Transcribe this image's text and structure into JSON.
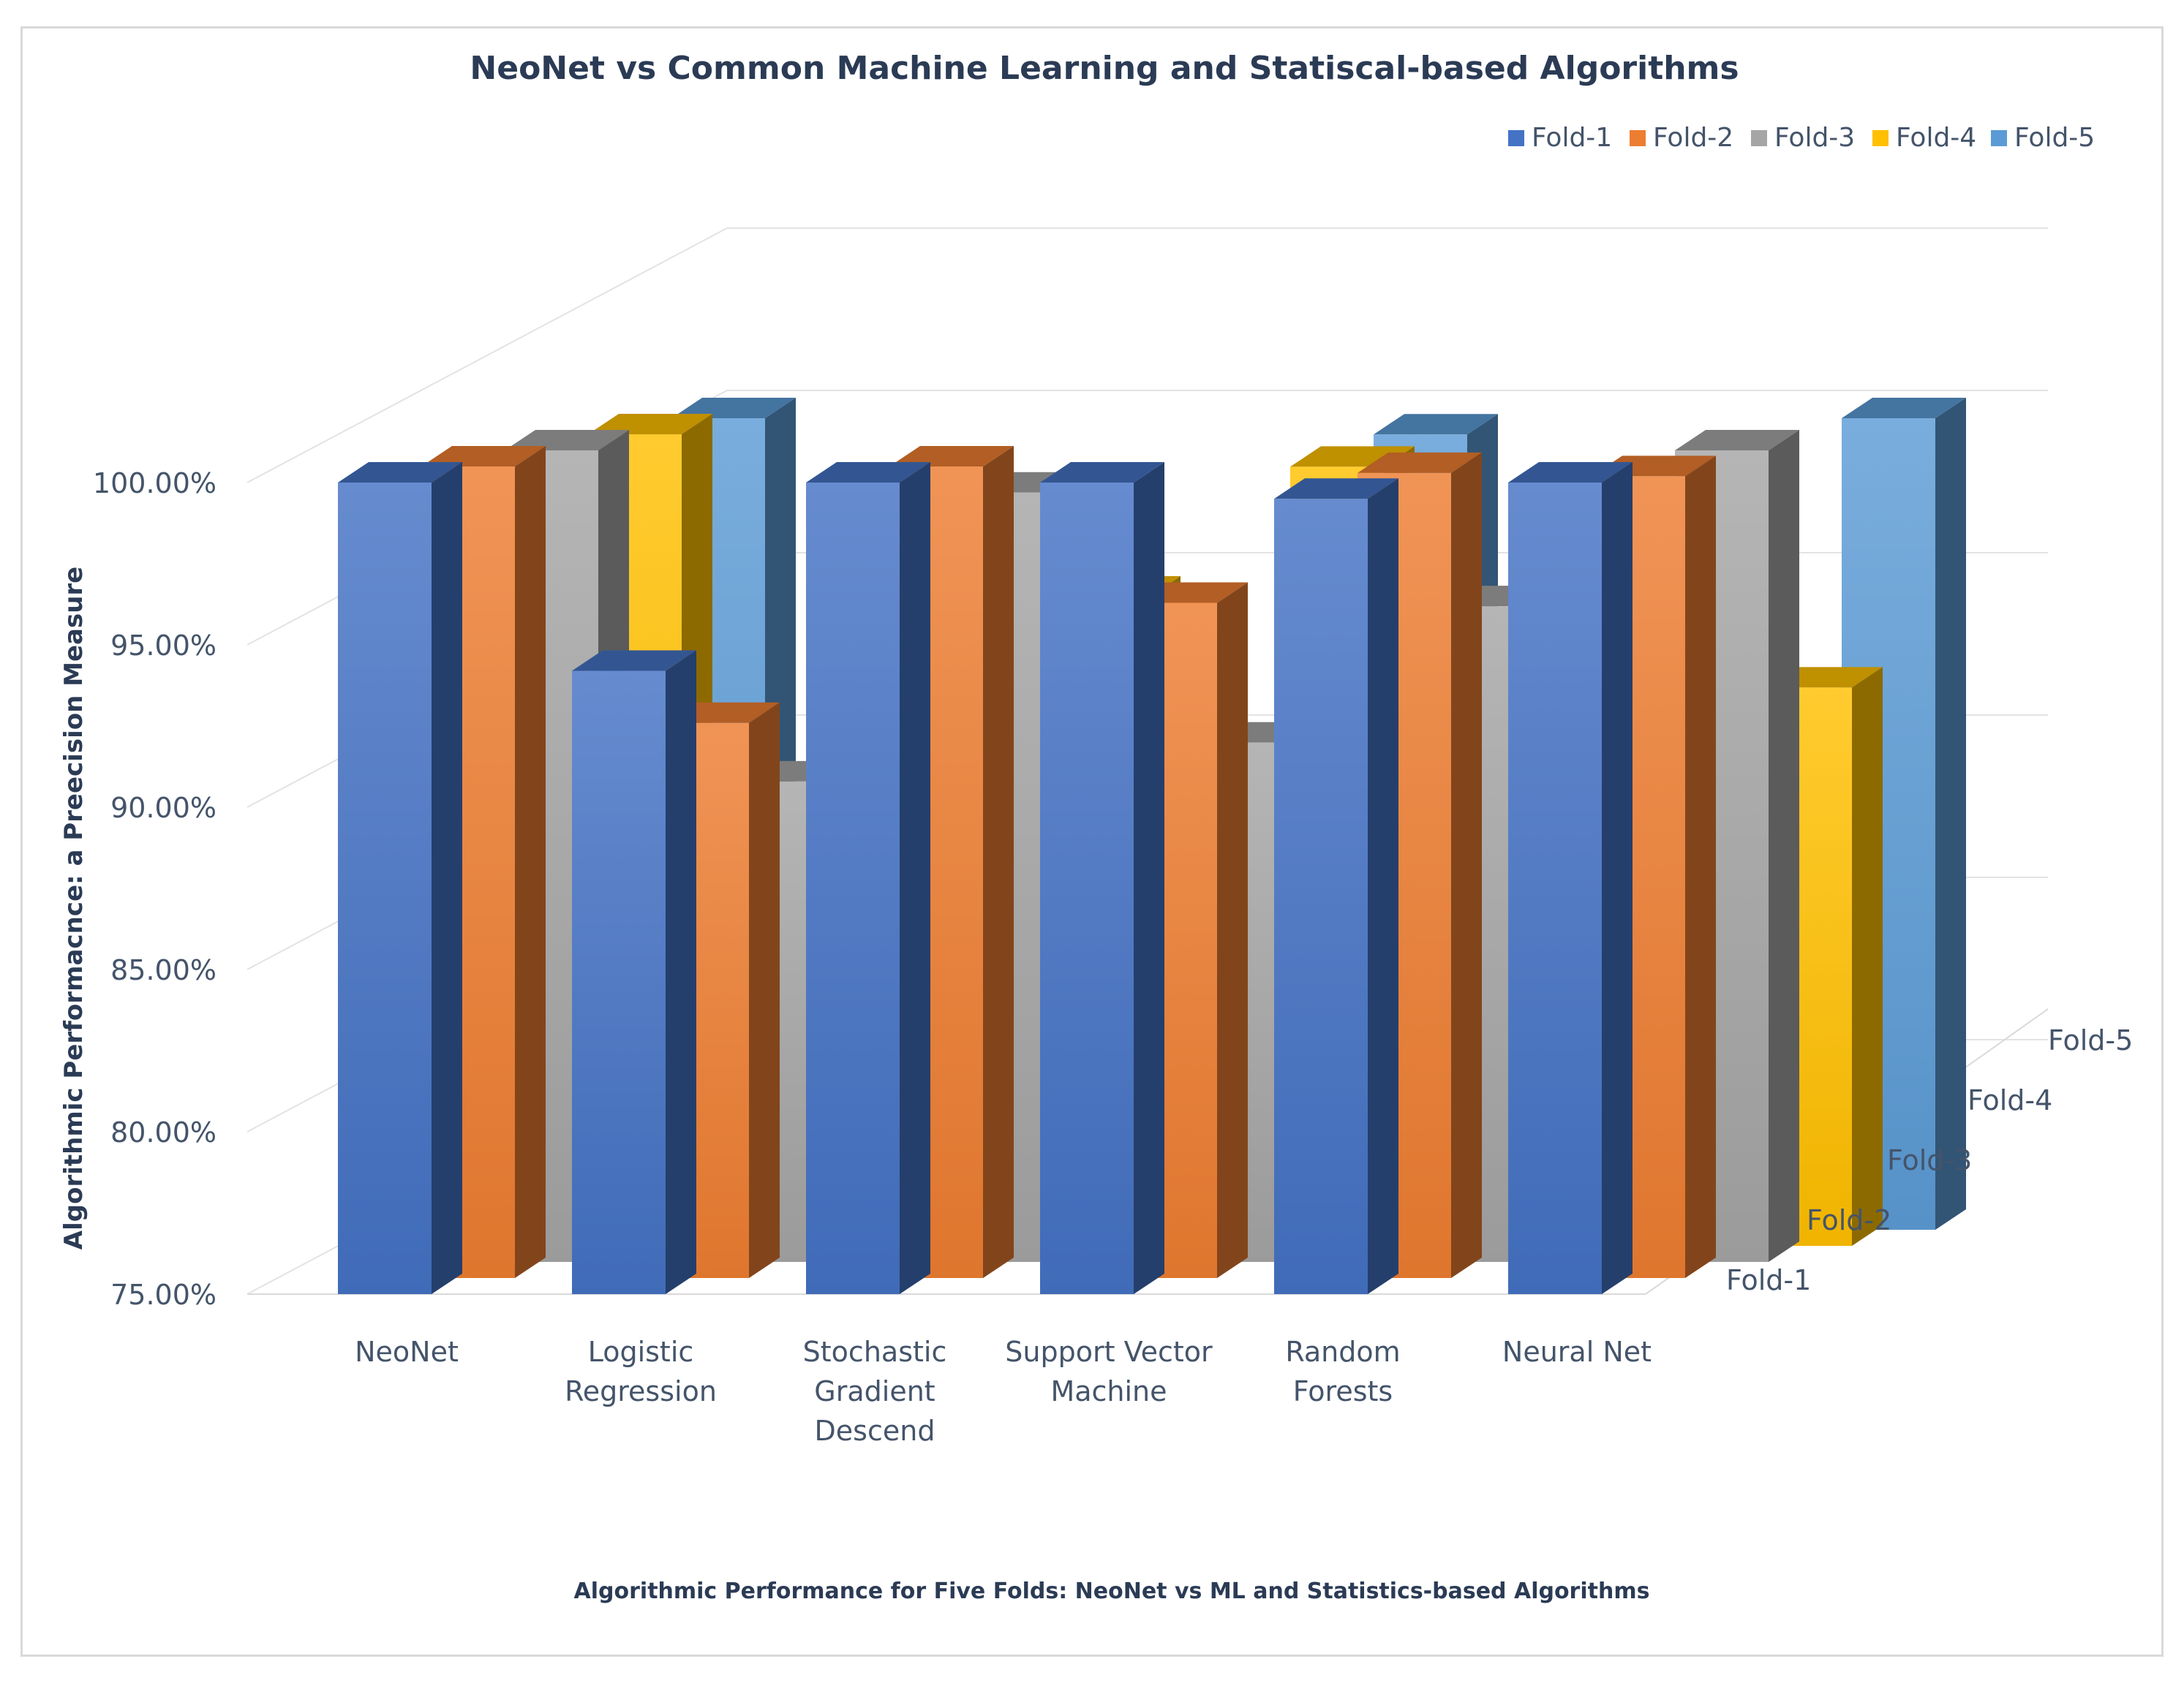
{
  "chart_data": {
    "type": "bar",
    "variant": "3d-clustered-column",
    "title": "NeoNet vs Common Machine Learning and Statiscal-based  Algorithms",
    "subtitle": "Algorithmic Performance for Five Folds: NeoNet vs ML and Statistics-based Algorithms",
    "ylabel": "Algorithmic Performacnce: a Preecision Measure",
    "xlabel": "",
    "ylim": [
      0.75,
      1.0
    ],
    "yticks": [
      "75.00%",
      "80.00%",
      "85.00%",
      "90.00%",
      "95.00%",
      "100.00%"
    ],
    "yticks_values": [
      0.75,
      0.8,
      0.85,
      0.9,
      0.95,
      1.0
    ],
    "categories": [
      [
        "NeoNet"
      ],
      [
        "Logistic",
        "Regression"
      ],
      [
        "Stochastic",
        "Gradient",
        "Descend"
      ],
      [
        "Support Vector",
        "Machine"
      ],
      [
        "Random",
        "Forests"
      ],
      [
        "Neural Net"
      ]
    ],
    "depth_labels": [
      "Fold-1",
      "Fold-2",
      "Fold-3",
      "Fold-4",
      "Fold-5"
    ],
    "series": [
      {
        "name": "Fold-1",
        "color": "#4472c4",
        "values": [
          1.0,
          0.942,
          1.0,
          1.0,
          0.995,
          1.0
        ]
      },
      {
        "name": "Fold-2",
        "color": "#ed7d31",
        "values": [
          1.0,
          0.921,
          1.0,
          0.958,
          0.998,
          0.997
        ]
      },
      {
        "name": "Fold-3",
        "color": "#a5a5a5",
        "values": [
          1.0,
          0.898,
          0.987,
          0.91,
          0.952,
          1.0
        ]
      },
      {
        "name": "Fold-4",
        "color": "#ffc000",
        "values": [
          1.0,
          0.8,
          0.95,
          0.99,
          0.8,
          0.922
        ]
      },
      {
        "name": "Fold-5",
        "color": "#5b9bd5",
        "values": [
          1.0,
          0.8,
          0.782,
          0.995,
          0.8,
          1.0
        ]
      }
    ],
    "legend": {
      "position": "top-right"
    },
    "grid": true
  }
}
